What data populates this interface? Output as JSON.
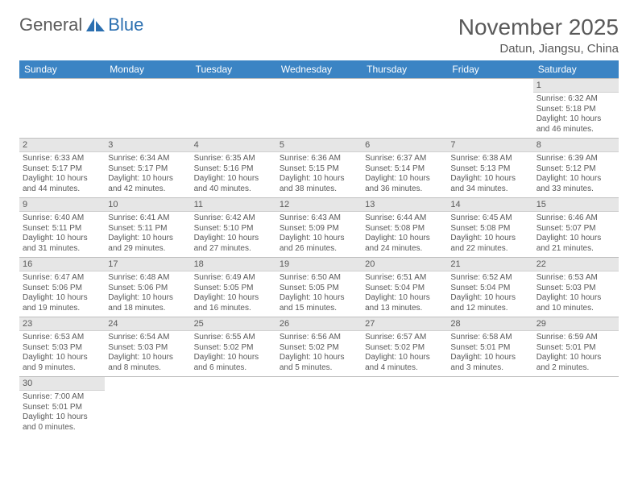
{
  "logo": {
    "text1": "General",
    "text2": "Blue"
  },
  "header": {
    "month_title": "November 2025",
    "location": "Datun, Jiangsu, China"
  },
  "colors": {
    "header_bg": "#3b84c4",
    "header_fg": "#ffffff",
    "daynum_bg": "#e6e6e6",
    "text": "#595959",
    "rule": "#bfbfbf",
    "logo_blue": "#2b6fb0"
  },
  "weekdays": [
    "Sunday",
    "Monday",
    "Tuesday",
    "Wednesday",
    "Thursday",
    "Friday",
    "Saturday"
  ],
  "weeks": [
    [
      null,
      null,
      null,
      null,
      null,
      null,
      {
        "n": "1",
        "sr": "Sunrise: 6:32 AM",
        "ss": "Sunset: 5:18 PM",
        "dl": "Daylight: 10 hours and 46 minutes."
      }
    ],
    [
      {
        "n": "2",
        "sr": "Sunrise: 6:33 AM",
        "ss": "Sunset: 5:17 PM",
        "dl": "Daylight: 10 hours and 44 minutes."
      },
      {
        "n": "3",
        "sr": "Sunrise: 6:34 AM",
        "ss": "Sunset: 5:17 PM",
        "dl": "Daylight: 10 hours and 42 minutes."
      },
      {
        "n": "4",
        "sr": "Sunrise: 6:35 AM",
        "ss": "Sunset: 5:16 PM",
        "dl": "Daylight: 10 hours and 40 minutes."
      },
      {
        "n": "5",
        "sr": "Sunrise: 6:36 AM",
        "ss": "Sunset: 5:15 PM",
        "dl": "Daylight: 10 hours and 38 minutes."
      },
      {
        "n": "6",
        "sr": "Sunrise: 6:37 AM",
        "ss": "Sunset: 5:14 PM",
        "dl": "Daylight: 10 hours and 36 minutes."
      },
      {
        "n": "7",
        "sr": "Sunrise: 6:38 AM",
        "ss": "Sunset: 5:13 PM",
        "dl": "Daylight: 10 hours and 34 minutes."
      },
      {
        "n": "8",
        "sr": "Sunrise: 6:39 AM",
        "ss": "Sunset: 5:12 PM",
        "dl": "Daylight: 10 hours and 33 minutes."
      }
    ],
    [
      {
        "n": "9",
        "sr": "Sunrise: 6:40 AM",
        "ss": "Sunset: 5:11 PM",
        "dl": "Daylight: 10 hours and 31 minutes."
      },
      {
        "n": "10",
        "sr": "Sunrise: 6:41 AM",
        "ss": "Sunset: 5:11 PM",
        "dl": "Daylight: 10 hours and 29 minutes."
      },
      {
        "n": "11",
        "sr": "Sunrise: 6:42 AM",
        "ss": "Sunset: 5:10 PM",
        "dl": "Daylight: 10 hours and 27 minutes."
      },
      {
        "n": "12",
        "sr": "Sunrise: 6:43 AM",
        "ss": "Sunset: 5:09 PM",
        "dl": "Daylight: 10 hours and 26 minutes."
      },
      {
        "n": "13",
        "sr": "Sunrise: 6:44 AM",
        "ss": "Sunset: 5:08 PM",
        "dl": "Daylight: 10 hours and 24 minutes."
      },
      {
        "n": "14",
        "sr": "Sunrise: 6:45 AM",
        "ss": "Sunset: 5:08 PM",
        "dl": "Daylight: 10 hours and 22 minutes."
      },
      {
        "n": "15",
        "sr": "Sunrise: 6:46 AM",
        "ss": "Sunset: 5:07 PM",
        "dl": "Daylight: 10 hours and 21 minutes."
      }
    ],
    [
      {
        "n": "16",
        "sr": "Sunrise: 6:47 AM",
        "ss": "Sunset: 5:06 PM",
        "dl": "Daylight: 10 hours and 19 minutes."
      },
      {
        "n": "17",
        "sr": "Sunrise: 6:48 AM",
        "ss": "Sunset: 5:06 PM",
        "dl": "Daylight: 10 hours and 18 minutes."
      },
      {
        "n": "18",
        "sr": "Sunrise: 6:49 AM",
        "ss": "Sunset: 5:05 PM",
        "dl": "Daylight: 10 hours and 16 minutes."
      },
      {
        "n": "19",
        "sr": "Sunrise: 6:50 AM",
        "ss": "Sunset: 5:05 PM",
        "dl": "Daylight: 10 hours and 15 minutes."
      },
      {
        "n": "20",
        "sr": "Sunrise: 6:51 AM",
        "ss": "Sunset: 5:04 PM",
        "dl": "Daylight: 10 hours and 13 minutes."
      },
      {
        "n": "21",
        "sr": "Sunrise: 6:52 AM",
        "ss": "Sunset: 5:04 PM",
        "dl": "Daylight: 10 hours and 12 minutes."
      },
      {
        "n": "22",
        "sr": "Sunrise: 6:53 AM",
        "ss": "Sunset: 5:03 PM",
        "dl": "Daylight: 10 hours and 10 minutes."
      }
    ],
    [
      {
        "n": "23",
        "sr": "Sunrise: 6:53 AM",
        "ss": "Sunset: 5:03 PM",
        "dl": "Daylight: 10 hours and 9 minutes."
      },
      {
        "n": "24",
        "sr": "Sunrise: 6:54 AM",
        "ss": "Sunset: 5:03 PM",
        "dl": "Daylight: 10 hours and 8 minutes."
      },
      {
        "n": "25",
        "sr": "Sunrise: 6:55 AM",
        "ss": "Sunset: 5:02 PM",
        "dl": "Daylight: 10 hours and 6 minutes."
      },
      {
        "n": "26",
        "sr": "Sunrise: 6:56 AM",
        "ss": "Sunset: 5:02 PM",
        "dl": "Daylight: 10 hours and 5 minutes."
      },
      {
        "n": "27",
        "sr": "Sunrise: 6:57 AM",
        "ss": "Sunset: 5:02 PM",
        "dl": "Daylight: 10 hours and 4 minutes."
      },
      {
        "n": "28",
        "sr": "Sunrise: 6:58 AM",
        "ss": "Sunset: 5:01 PM",
        "dl": "Daylight: 10 hours and 3 minutes."
      },
      {
        "n": "29",
        "sr": "Sunrise: 6:59 AM",
        "ss": "Sunset: 5:01 PM",
        "dl": "Daylight: 10 hours and 2 minutes."
      }
    ],
    [
      {
        "n": "30",
        "sr": "Sunrise: 7:00 AM",
        "ss": "Sunset: 5:01 PM",
        "dl": "Daylight: 10 hours and 0 minutes."
      },
      null,
      null,
      null,
      null,
      null,
      null
    ]
  ]
}
